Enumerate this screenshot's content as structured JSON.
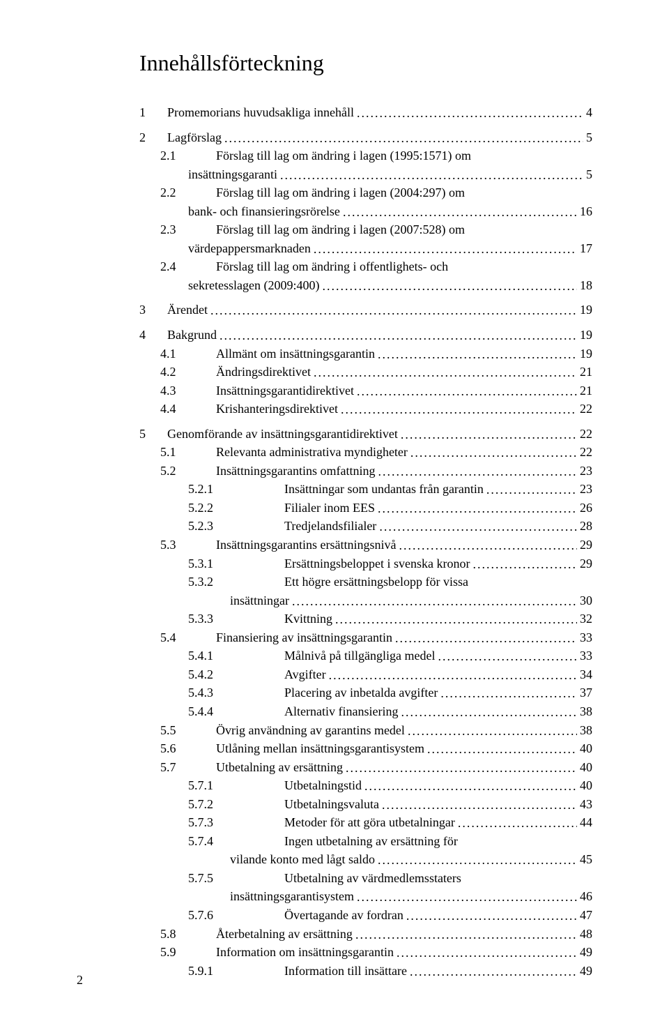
{
  "title": "Innehållsförteckning",
  "page_number": "2",
  "colors": {
    "text": "#000000",
    "background": "#ffffff"
  },
  "typography": {
    "font_family": "Times New Roman",
    "title_fontsize": 32,
    "body_fontsize": 18
  },
  "toc": [
    {
      "level": 1,
      "num": "1",
      "text": "Promemorians huvudsakliga innehåll",
      "page": "4",
      "gap": true
    },
    {
      "level": 1,
      "num": "2",
      "text": "Lagförslag",
      "page": "5",
      "gap": true
    },
    {
      "level": 2,
      "num": "2.1",
      "text": "Förslag till lag om ändring i lagen (1995:1571) om",
      "page": "",
      "cont": true
    },
    {
      "level": 2,
      "num": "",
      "text": "insättningsgaranti",
      "page": "5",
      "contline": true
    },
    {
      "level": 2,
      "num": "2.2",
      "text": "Förslag till lag om ändring i lagen (2004:297) om",
      "page": "",
      "cont": true
    },
    {
      "level": 2,
      "num": "",
      "text": "bank- och finansieringsrörelse",
      "page": "16",
      "contline": true
    },
    {
      "level": 2,
      "num": "2.3",
      "text": "Förslag till lag om ändring i lagen (2007:528) om",
      "page": "",
      "cont": true
    },
    {
      "level": 2,
      "num": "",
      "text": "värdepappersmarknaden",
      "page": "17",
      "contline": true
    },
    {
      "level": 2,
      "num": "2.4",
      "text": "Förslag till lag om ändring i offentlighets- och",
      "page": "",
      "cont": true
    },
    {
      "level": 2,
      "num": "",
      "text": "sekretesslagen (2009:400)",
      "page": "18",
      "contline": true
    },
    {
      "level": 1,
      "num": "3",
      "text": "Ärendet",
      "page": "19",
      "gap": true
    },
    {
      "level": 1,
      "num": "4",
      "text": "Bakgrund",
      "page": "19",
      "gap": true
    },
    {
      "level": 2,
      "num": "4.1",
      "text": "Allmänt om insättningsgarantin",
      "page": "19"
    },
    {
      "level": 2,
      "num": "4.2",
      "text": "Ändringsdirektivet",
      "page": "21"
    },
    {
      "level": 2,
      "num": "4.3",
      "text": "Insättningsgarantidirektivet",
      "page": "21"
    },
    {
      "level": 2,
      "num": "4.4",
      "text": "Krishanteringsdirektivet",
      "page": "22"
    },
    {
      "level": 1,
      "num": "5",
      "text": "Genomförande av insättningsgarantidirektivet",
      "page": "22",
      "gap": true
    },
    {
      "level": 2,
      "num": "5.1",
      "text": "Relevanta administrativa myndigheter",
      "page": "22"
    },
    {
      "level": 2,
      "num": "5.2",
      "text": "Insättningsgarantins omfattning",
      "page": "23"
    },
    {
      "level": 3,
      "num": "5.2.1",
      "text": "Insättningar som undantas från garantin",
      "page": "23"
    },
    {
      "level": 3,
      "num": "5.2.2",
      "text": "Filialer inom EES",
      "page": "26"
    },
    {
      "level": 3,
      "num": "5.2.3",
      "text": "Tredjelandsfilialer",
      "page": "28"
    },
    {
      "level": 2,
      "num": "5.3",
      "text": "Insättningsgarantins ersättningsnivå",
      "page": "29"
    },
    {
      "level": 3,
      "num": "5.3.1",
      "text": "Ersättningsbeloppet i svenska kronor",
      "page": "29"
    },
    {
      "level": 3,
      "num": "5.3.2",
      "text": "Ett högre ersättningsbelopp för vissa",
      "page": "",
      "cont": true
    },
    {
      "level": 3,
      "num": "",
      "text": "insättningar",
      "page": "30",
      "contline": true
    },
    {
      "level": 3,
      "num": "5.3.3",
      "text": "Kvittning",
      "page": "32"
    },
    {
      "level": 2,
      "num": "5.4",
      "text": "Finansiering av insättningsgarantin",
      "page": "33"
    },
    {
      "level": 3,
      "num": "5.4.1",
      "text": "Målnivå på tillgängliga medel",
      "page": "33"
    },
    {
      "level": 3,
      "num": "5.4.2",
      "text": "Avgifter",
      "page": "34"
    },
    {
      "level": 3,
      "num": "5.4.3",
      "text": "Placering av inbetalda avgifter",
      "page": "37"
    },
    {
      "level": 3,
      "num": "5.4.4",
      "text": "Alternativ finansiering",
      "page": "38"
    },
    {
      "level": 2,
      "num": "5.5",
      "text": "Övrig användning av garantins medel",
      "page": "38"
    },
    {
      "level": 2,
      "num": "5.6",
      "text": "Utlåning mellan insättningsgarantisystem",
      "page": "40"
    },
    {
      "level": 2,
      "num": "5.7",
      "text": "Utbetalning av ersättning",
      "page": "40"
    },
    {
      "level": 3,
      "num": "5.7.1",
      "text": "Utbetalningstid",
      "page": "40"
    },
    {
      "level": 3,
      "num": "5.7.2",
      "text": "Utbetalningsvaluta",
      "page": "43"
    },
    {
      "level": 3,
      "num": "5.7.3",
      "text": "Metoder för att göra utbetalningar",
      "page": "44"
    },
    {
      "level": 3,
      "num": "5.7.4",
      "text": "Ingen utbetalning av ersättning för",
      "page": "",
      "cont": true
    },
    {
      "level": 3,
      "num": "",
      "text": "vilande konto med lågt saldo",
      "page": "45",
      "contline": true
    },
    {
      "level": 3,
      "num": "5.7.5",
      "text": "Utbetalning av värdmedlemsstaters",
      "page": "",
      "cont": true
    },
    {
      "level": 3,
      "num": "",
      "text": "insättningsgarantisystem",
      "page": "46",
      "contline": true
    },
    {
      "level": 3,
      "num": "5.7.6",
      "text": "Övertagande av fordran",
      "page": "47"
    },
    {
      "level": 2,
      "num": "5.8",
      "text": "Återbetalning av ersättning",
      "page": "48"
    },
    {
      "level": 2,
      "num": "5.9",
      "text": "Information om insättningsgarantin",
      "page": "49"
    },
    {
      "level": 3,
      "num": "5.9.1",
      "text": "Information till insättare",
      "page": "49"
    }
  ]
}
